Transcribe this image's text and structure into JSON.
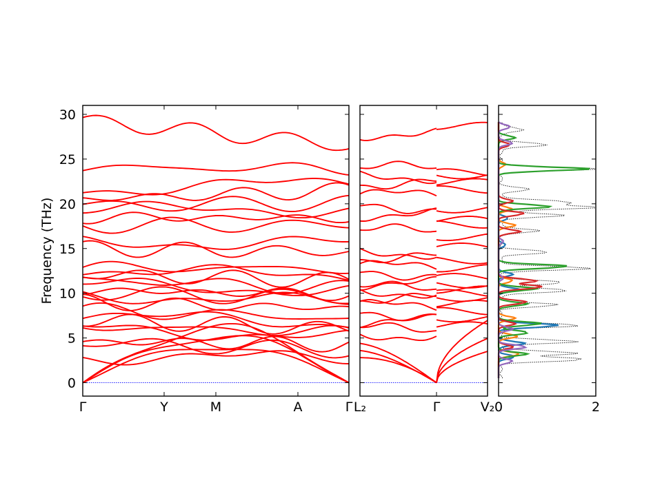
{
  "chart_data": [
    {
      "type": "line",
      "panel": "band-structure-main",
      "ylabel": "Frequency (THz)",
      "ylim": [
        -1.5,
        31
      ],
      "yticks": [
        0,
        5,
        10,
        15,
        20,
        25,
        30
      ],
      "path_labels": [
        "Γ",
        "Y",
        "M",
        "A",
        "Γ"
      ],
      "grid": false,
      "band_color": "#ff0000",
      "zero_line_color": "#0000ff",
      "bands": [
        {
          "start": 0,
          "end": 0
        },
        {
          "start": 0,
          "end": 0
        },
        {
          "start": 0,
          "end": 0
        },
        {
          "start": 2.9,
          "end": 2.8
        },
        {
          "start": 4.5,
          "end": 3.6
        },
        {
          "start": 4.6,
          "end": 4.3
        },
        {
          "start": 6.1,
          "end": 5.0
        },
        {
          "start": 6.3,
          "end": 5.6
        },
        {
          "start": 7.0,
          "end": 6.0
        },
        {
          "start": 7.6,
          "end": 6.6
        },
        {
          "start": 8.1,
          "end": 7.2
        },
        {
          "start": 9.0,
          "end": 8.3
        },
        {
          "start": 9.8,
          "end": 9.0
        },
        {
          "start": 10.0,
          "end": 9.5
        },
        {
          "start": 10.3,
          "end": 9.9
        },
        {
          "start": 11.0,
          "end": 10.2
        },
        {
          "start": 11.6,
          "end": 10.5
        },
        {
          "start": 12.1,
          "end": 11.4
        },
        {
          "start": 12.6,
          "end": 12.0
        },
        {
          "start": 12.9,
          "end": 12.7
        },
        {
          "start": 15.0,
          "end": 14.6
        },
        {
          "start": 15.6,
          "end": 15.6
        },
        {
          "start": 17.6,
          "end": 17.6
        },
        {
          "start": 18.5,
          "end": 18.4
        },
        {
          "start": 19.4,
          "end": 19.3
        },
        {
          "start": 19.8,
          "end": 20.1
        },
        {
          "start": 20.5,
          "end": 21.5
        },
        {
          "start": 21.5,
          "end": 22.5
        },
        {
          "start": 24.0,
          "end": 24.0
        },
        {
          "start": 29.3,
          "end": 26.5
        }
      ]
    },
    {
      "type": "line",
      "panel": "band-structure-secondary",
      "ylim": [
        -1.5,
        31
      ],
      "path_labels": [
        "L₂",
        "Γ",
        "V₂"
      ],
      "grid": false,
      "band_color": "#ff0000",
      "left_segment_bands": [
        2.8,
        3.6,
        4.4,
        5.3,
        6.0,
        6.9,
        7.7,
        8.6,
        9.4,
        10.1,
        10.6,
        11.1,
        12.2,
        13.0,
        14.0,
        14.5,
        17.0,
        18.8,
        19.6,
        21.0,
        22.3,
        23.0,
        24.0,
        27.8
      ],
      "right_segment_bands": [
        3.5,
        4.5,
        5.8,
        6.4,
        7.2,
        8.0,
        8.8,
        9.5,
        10.0,
        10.4,
        11.0,
        11.8,
        12.8,
        13.7,
        15.2,
        16.3,
        17.7,
        18.2,
        19.4,
        21.6,
        22.4,
        23.2,
        23.5,
        28.7
      ]
    },
    {
      "type": "area",
      "panel": "phonon-dos",
      "xlim": [
        0,
        2
      ],
      "xticks": [
        0,
        2
      ],
      "ylim": [
        -1.5,
        31
      ],
      "grid": false,
      "series": [
        {
          "color": "#000000",
          "style": "dotted",
          "peaks": [
            [
              2.6,
              1.8
            ],
            [
              3.3,
              1.6
            ],
            [
              4.6,
              1.6
            ],
            [
              6.4,
              1.7
            ],
            [
              8.7,
              1.2
            ],
            [
              10.3,
              1.5
            ],
            [
              11.2,
              1.4
            ],
            [
              12.8,
              1.9
            ],
            [
              14.6,
              1.0
            ],
            [
              17.0,
              0.8
            ],
            [
              18.7,
              1.3
            ],
            [
              19.6,
              2.0
            ],
            [
              20.2,
              1.5
            ],
            [
              21.6,
              0.6
            ],
            [
              23.9,
              2.0
            ],
            [
              26.6,
              1.0
            ],
            [
              28.3,
              0.5
            ]
          ]
        },
        {
          "color": "#1f77b4",
          "style": "solid",
          "peaks": [
            [
              2.9,
              0.35
            ],
            [
              4.4,
              0.55
            ],
            [
              6.4,
              1.3
            ],
            [
              10.4,
              0.45
            ],
            [
              12.1,
              0.3
            ],
            [
              15.4,
              0.15
            ],
            [
              18.4,
              0.2
            ]
          ]
        },
        {
          "color": "#ff7f0e",
          "style": "solid",
          "peaks": [
            [
              3.2,
              0.45
            ],
            [
              5.2,
              0.4
            ],
            [
              7.2,
              0.35
            ],
            [
              11.4,
              0.3
            ],
            [
              17.6,
              0.35
            ],
            [
              19.4,
              0.3
            ],
            [
              24.4,
              0.15
            ]
          ]
        },
        {
          "color": "#2ca02c",
          "style": "solid",
          "peaks": [
            [
              3.2,
              0.6
            ],
            [
              5.6,
              0.65
            ],
            [
              6.6,
              0.9
            ],
            [
              8.8,
              0.6
            ],
            [
              10.5,
              0.8
            ],
            [
              13.0,
              1.5
            ],
            [
              19.7,
              1.1
            ],
            [
              23.9,
              1.9
            ],
            [
              27.4,
              0.35
            ]
          ]
        },
        {
          "color": "#d62728",
          "style": "solid",
          "peaks": [
            [
              4.0,
              0.3
            ],
            [
              6.6,
              0.35
            ],
            [
              9.0,
              0.6
            ],
            [
              10.7,
              0.95
            ],
            [
              11.4,
              0.8
            ],
            [
              16.9,
              0.45
            ],
            [
              18.9,
              0.55
            ],
            [
              20.3,
              0.3
            ],
            [
              26.6,
              0.25
            ]
          ]
        },
        {
          "color": "#9467bd",
          "style": "solid",
          "peaks": [
            [
              2.4,
              0.3
            ],
            [
              4.0,
              0.6
            ],
            [
              6.0,
              0.3
            ],
            [
              11.7,
              0.1
            ],
            [
              15.8,
              0.1
            ],
            [
              26.8,
              0.3
            ],
            [
              28.6,
              0.25
            ]
          ]
        }
      ]
    }
  ]
}
